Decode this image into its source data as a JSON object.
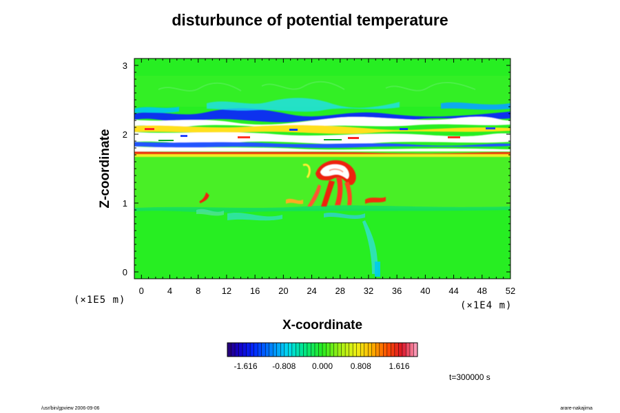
{
  "chart_data": {
    "type": "heatmap",
    "title": "disturbunce of potential temperature",
    "xlabel": "X-coordinate",
    "ylabel": "Z-coordinate",
    "x_scale_note": "(×1E4 m)",
    "y_scale_note": "(×1E5 m)",
    "xlim": [
      -1,
      52
    ],
    "ylim": [
      -0.1,
      3.1
    ],
    "x_ticks": [
      "0",
      "4",
      "8",
      "12",
      "16",
      "20",
      "24",
      "28",
      "32",
      "36",
      "40",
      "44",
      "48",
      "52"
    ],
    "y_ticks": [
      "0",
      "1",
      "2",
      "3"
    ],
    "colorbar": {
      "range": [
        -2.0,
        2.0
      ],
      "tick_labels": [
        "-1.616",
        "-0.808",
        "0.000",
        "0.808",
        "1.616"
      ],
      "tick_values": [
        -1.616,
        -0.808,
        0.0,
        0.808,
        1.616
      ]
    },
    "features": [
      {
        "x": 26,
        "z": 1.48,
        "value": 2.0
      },
      {
        "x": 25,
        "z": 1.25,
        "value": 1.6
      },
      {
        "x": 9,
        "z": 1.08,
        "value": 1.5
      },
      {
        "x": 33,
        "z": 0.1,
        "value": -0.9
      }
    ],
    "time_label": "t=300000 s"
  },
  "footer": {
    "left": "/usr/bin/gpview 2006-09-06",
    "right": "arare-nakajima"
  },
  "colors": {
    "background_field": "#22ee22",
    "axis": "#000000"
  }
}
